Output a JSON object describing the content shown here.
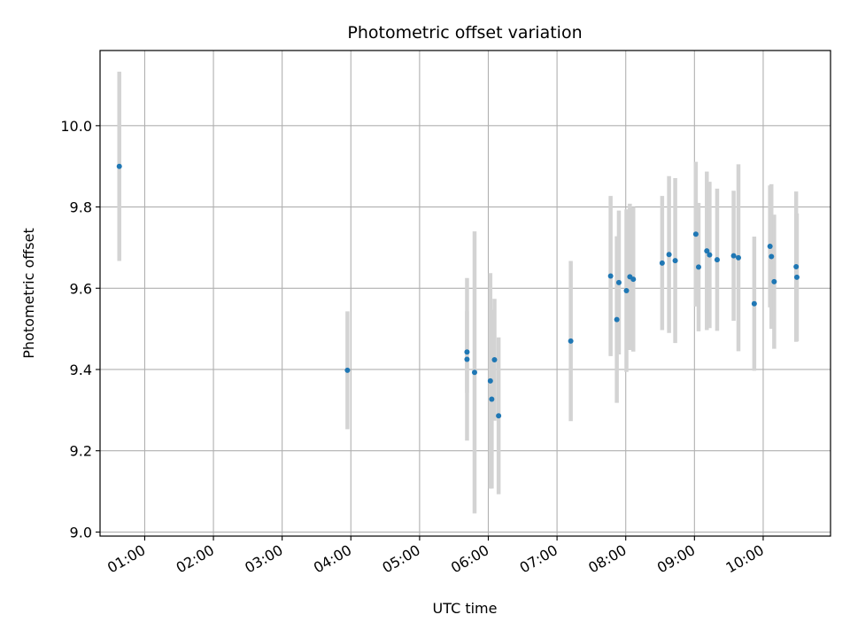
{
  "chart_data": {
    "type": "scatter",
    "title": "Photometric offset variation",
    "xlabel": "UTC time",
    "ylabel": "Photometric offset",
    "xlim": [
      0.35,
      10.98
    ],
    "ylim": [
      8.99,
      10.185
    ],
    "x_unit": "hours UTC",
    "grid": true,
    "xticks": [
      {
        "value": 1,
        "label": "01:00"
      },
      {
        "value": 2,
        "label": "02:00"
      },
      {
        "value": 3,
        "label": "03:00"
      },
      {
        "value": 4,
        "label": "04:00"
      },
      {
        "value": 5,
        "label": "05:00"
      },
      {
        "value": 6,
        "label": "06:00"
      },
      {
        "value": 7,
        "label": "07:00"
      },
      {
        "value": 8,
        "label": "08:00"
      },
      {
        "value": 9,
        "label": "09:00"
      },
      {
        "value": 10,
        "label": "10:00"
      }
    ],
    "yticks": [
      {
        "value": 9.0,
        "label": "9.0"
      },
      {
        "value": 9.2,
        "label": "9.2"
      },
      {
        "value": 9.4,
        "label": "9.4"
      },
      {
        "value": 9.6,
        "label": "9.6"
      },
      {
        "value": 9.8,
        "label": "9.8"
      },
      {
        "value": 10.0,
        "label": "10.0"
      }
    ],
    "marker_color": "#1f77b4",
    "errorbar_color": "#d3d3d3",
    "series": [
      {
        "name": "Photometric offset",
        "points": [
          {
            "x": 0.63,
            "y": 9.9,
            "err": 0.233
          },
          {
            "x": 3.95,
            "y": 9.398,
            "err": 0.145
          },
          {
            "x": 5.69,
            "y": 9.443,
            "err": 0.1
          },
          {
            "x": 5.69,
            "y": 9.425,
            "err": 0.2
          },
          {
            "x": 5.8,
            "y": 9.393,
            "err": 0.347
          },
          {
            "x": 6.03,
            "y": 9.372,
            "err": 0.265
          },
          {
            "x": 6.05,
            "y": 9.327,
            "err": 0.22
          },
          {
            "x": 6.09,
            "y": 9.424,
            "err": 0.15
          },
          {
            "x": 6.15,
            "y": 9.286,
            "err": 0.193
          },
          {
            "x": 7.2,
            "y": 9.47,
            "err": 0.197
          },
          {
            "x": 7.78,
            "y": 9.63,
            "err": 0.197
          },
          {
            "x": 7.87,
            "y": 9.523,
            "err": 0.205
          },
          {
            "x": 7.9,
            "y": 9.614,
            "err": 0.177
          },
          {
            "x": 8.01,
            "y": 9.594,
            "err": 0.2
          },
          {
            "x": 8.06,
            "y": 9.628,
            "err": 0.18
          },
          {
            "x": 8.11,
            "y": 9.622,
            "err": 0.178
          },
          {
            "x": 8.53,
            "y": 9.662,
            "err": 0.165
          },
          {
            "x": 8.63,
            "y": 9.683,
            "err": 0.193
          },
          {
            "x": 8.72,
            "y": 9.668,
            "err": 0.203
          },
          {
            "x": 9.02,
            "y": 9.733,
            "err": 0.178
          },
          {
            "x": 9.06,
            "y": 9.652,
            "err": 0.158
          },
          {
            "x": 9.18,
            "y": 9.692,
            "err": 0.195
          },
          {
            "x": 9.22,
            "y": 9.682,
            "err": 0.18
          },
          {
            "x": 9.33,
            "y": 9.67,
            "err": 0.175
          },
          {
            "x": 9.57,
            "y": 9.68,
            "err": 0.16
          },
          {
            "x": 9.64,
            "y": 9.675,
            "err": 0.23
          },
          {
            "x": 9.87,
            "y": 9.562,
            "err": 0.165
          },
          {
            "x": 10.1,
            "y": 9.703,
            "err": 0.15
          },
          {
            "x": 10.12,
            "y": 9.678,
            "err": 0.178
          },
          {
            "x": 10.16,
            "y": 9.616,
            "err": 0.165
          },
          {
            "x": 10.48,
            "y": 9.653,
            "err": 0.185
          },
          {
            "x": 10.49,
            "y": 9.627,
            "err": 0.157
          }
        ]
      }
    ]
  }
}
